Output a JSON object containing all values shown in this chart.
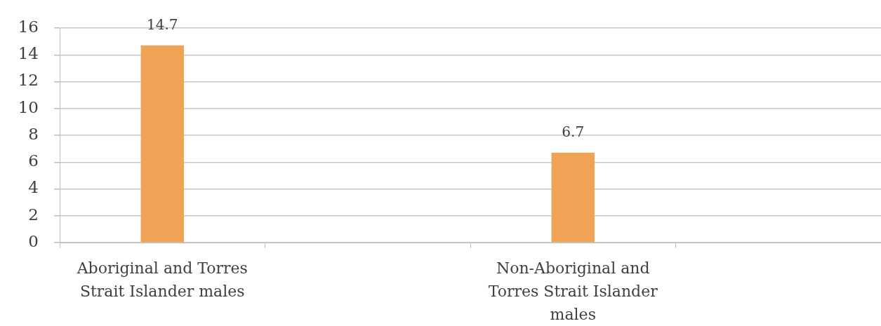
{
  "chart_data": {
    "type": "bar",
    "categories": [
      "Aboriginal and Torres Strait Islander males",
      null,
      "Non-Aboriginal and Torres Strait Islander males",
      null
    ],
    "values": [
      14.7,
      null,
      6.7,
      null
    ],
    "color": "#f0a354",
    "ylim": [
      0,
      16
    ],
    "yticks": [
      0,
      2,
      4,
      6,
      8,
      10,
      12,
      14,
      16
    ],
    "grid": "y",
    "data_labels": true
  }
}
